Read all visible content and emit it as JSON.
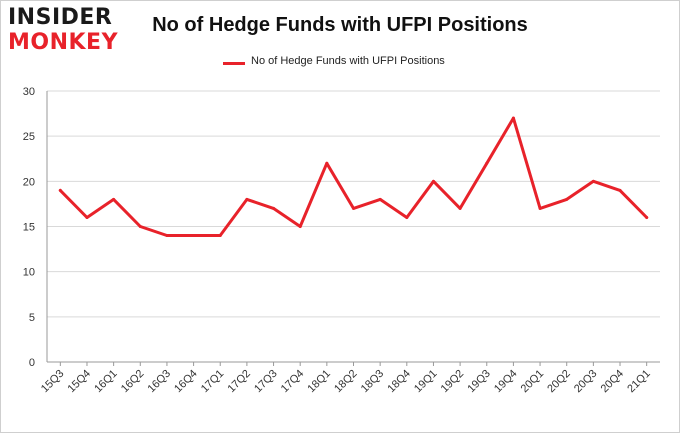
{
  "brand": {
    "line1": "INSIDER",
    "line2": "MONKEY"
  },
  "colors": {
    "series": "#e8222a",
    "grid": "#d9d9d9",
    "axis": "#999999"
  },
  "chart_data": {
    "type": "line",
    "title": "No of Hedge Funds with UFPI Positions",
    "xlabel": "",
    "ylabel": "",
    "ylim": [
      0,
      30
    ],
    "yticks": [
      0,
      5,
      10,
      15,
      20,
      25,
      30
    ],
    "grid": true,
    "legend_position": "top-center",
    "categories": [
      "15Q3",
      "15Q4",
      "16Q1",
      "16Q2",
      "16Q3",
      "16Q4",
      "17Q1",
      "17Q2",
      "17Q3",
      "17Q4",
      "18Q1",
      "18Q2",
      "18Q3",
      "18Q4",
      "19Q1",
      "19Q2",
      "19Q3",
      "19Q4",
      "20Q1",
      "20Q2",
      "20Q3",
      "20Q4",
      "21Q1"
    ],
    "series": [
      {
        "name": "No of Hedge Funds with UFPI Positions",
        "values": [
          19,
          16,
          18,
          15,
          14,
          14,
          14,
          18,
          17,
          15,
          22,
          17,
          18,
          16,
          20,
          17,
          22,
          27,
          17,
          18,
          20,
          19,
          16
        ]
      }
    ]
  }
}
